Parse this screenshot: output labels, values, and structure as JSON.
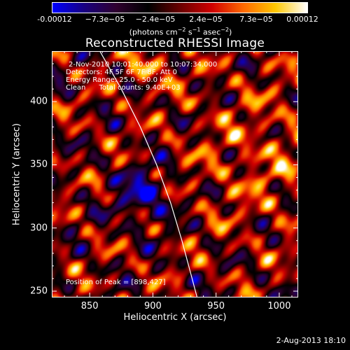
{
  "colorbar": {
    "ticks": [
      "-0.00012",
      "−7.3e−05",
      "−2.4e−05",
      "2.4e−05",
      "7.3e−05",
      "0.00012"
    ],
    "units_prefix": "(photons cm",
    "units_exp1": "−2",
    "units_mid": " s",
    "units_exp2": "−1",
    "units_mid2": " asec",
    "units_exp3": "−2",
    "units_suffix": ")",
    "colormap": [
      "#0000ff",
      "#1a0080",
      "#300030",
      "#000000",
      "#6a0000",
      "#d00000",
      "#ff6a00",
      "#ffc800",
      "#ffffff"
    ]
  },
  "title": "Reconstructed RHESSI Image",
  "info_lines": [
    "2-Nov-2010 10:01:40.000 to 10:07:34.000",
    "Detectors: 4F 5F 6F 7F 8F, Att 0",
    "Energy Range: 25.0 - 50.0 keV",
    "Clean      Total counts: 9.40E+03"
  ],
  "peak_text": "Position of Peak = [898,427]",
  "timestamp": "2-Aug-2013 18:10",
  "chart_data": {
    "type": "heatmap",
    "title": "Reconstructed RHESSI Image",
    "xlabel": "Heliocentric X (arcsec)",
    "ylabel": "Heliocentric Y (arcsec)",
    "xlim": [
      820,
      1015
    ],
    "ylim": [
      245,
      440
    ],
    "x_ticks": [
      850,
      900,
      950,
      1000
    ],
    "y_ticks": [
      250,
      300,
      350,
      400
    ],
    "value_range": [
      -0.00012,
      0.00012
    ],
    "peak_position": [
      898,
      427
    ],
    "limb_curve": [
      [
        858,
        440
      ],
      [
        875,
        410
      ],
      [
        890,
        380
      ],
      [
        903,
        350
      ],
      [
        914,
        320
      ],
      [
        923,
        290
      ],
      [
        931,
        260
      ],
      [
        935,
        245
      ]
    ]
  }
}
